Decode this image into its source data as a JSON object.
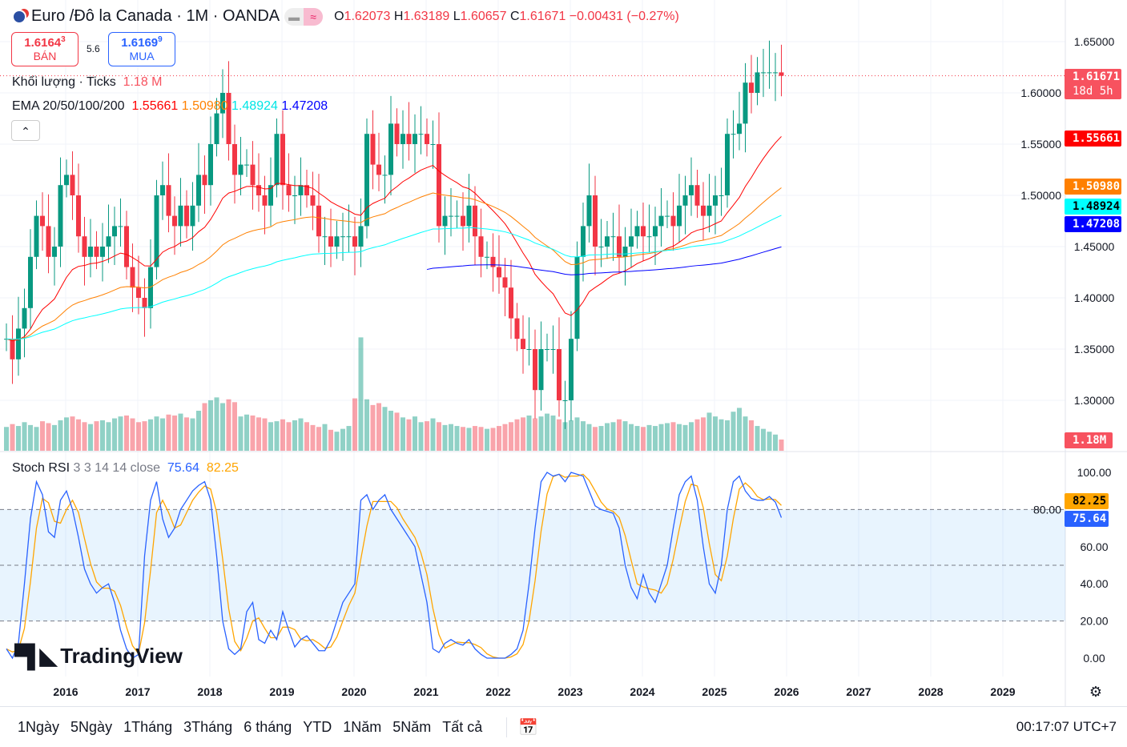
{
  "header": {
    "title": "Euro /Đô la Canada · 1M · OANDA",
    "open_label": "O",
    "open": "1.62073",
    "high_label": "H",
    "high": "1.63189",
    "low_label": "L",
    "low": "1.60657",
    "close_label": "C",
    "close": "1.61671",
    "change": "−0.00431 (−0.27%)"
  },
  "trade": {
    "sell_price": "1.6164",
    "sell_sup": "3",
    "sell_label": "BÁN",
    "spread": "5.6",
    "buy_price": "1.6169",
    "buy_sup": "9",
    "buy_label": "MUA"
  },
  "volume_legend": {
    "label": "Khối lượng · Ticks",
    "value": "1.18 M"
  },
  "ema_legend": {
    "label": "EMA 20/50/100/200",
    "ema20": "1.55661",
    "ema50": "1.50980",
    "ema100": "1.48924",
    "ema200": "1.47208"
  },
  "stoch_legend": {
    "label": "Stoch RSI",
    "params": "3 3 14 14 close",
    "k": "75.64",
    "d": "82.25"
  },
  "price_tags": {
    "last": "1.61671",
    "countdown": "18d 5h",
    "ema20": "1.55661",
    "ema50": "1.50980",
    "ema100": "1.48924",
    "ema200": "1.47208",
    "volume": "1.18M",
    "stoch_d": "82.25",
    "stoch_k": "75.64"
  },
  "colors": {
    "up": "#089981",
    "down": "#f23645",
    "ema20": "#ff0000",
    "ema50": "#ff8000",
    "ema100": "#00ffff",
    "ema200": "#0000ff",
    "k": "#2962ff",
    "d": "#ffa500"
  },
  "bottom": {
    "ranges": [
      "1Ngày",
      "5Ngày",
      "1Tháng",
      "3Tháng",
      "6 tháng",
      "YTD",
      "1Năm",
      "5Năm",
      "Tất cả"
    ],
    "time": "00:17:07 UTC+7"
  },
  "logo": "TradingView",
  "chart_data": {
    "type": "candlestick",
    "start": "2015-03",
    "interval": "1M",
    "x_ticks": [
      "2016",
      "2017",
      "2018",
      "2019",
      "2020",
      "2021",
      "2022",
      "2023",
      "2024",
      "2025",
      "2026",
      "2027",
      "2028",
      "2029"
    ],
    "price_ticks": [
      "1.65000",
      "1.60000",
      "1.55000",
      "1.50000",
      "1.45000",
      "1.40000",
      "1.35000",
      "1.30000"
    ],
    "price_range": [
      1.28,
      1.66
    ],
    "close": [
      1.36,
      1.34,
      1.37,
      1.39,
      1.44,
      1.48,
      1.47,
      1.44,
      1.45,
      1.51,
      1.52,
      1.5,
      1.46,
      1.44,
      1.45,
      1.44,
      1.45,
      1.46,
      1.47,
      1.47,
      1.43,
      1.41,
      1.4,
      1.39,
      1.43,
      1.5,
      1.51,
      1.48,
      1.47,
      1.49,
      1.47,
      1.49,
      1.52,
      1.51,
      1.55,
      1.58,
      1.6,
      1.55,
      1.52,
      1.53,
      1.53,
      1.51,
      1.5,
      1.49,
      1.51,
      1.56,
      1.51,
      1.5,
      1.5,
      1.51,
      1.5,
      1.49,
      1.46,
      1.46,
      1.45,
      1.46,
      1.46,
      1.46,
      1.45,
      1.47,
      1.56,
      1.53,
      1.52,
      1.52,
      1.57,
      1.55,
      1.56,
      1.55,
      1.56,
      1.56,
      1.55,
      1.55,
      1.47,
      1.48,
      1.48,
      1.48,
      1.47,
      1.49,
      1.46,
      1.44,
      1.44,
      1.43,
      1.42,
      1.41,
      1.38,
      1.36,
      1.35,
      1.35,
      1.31,
      1.35,
      1.35,
      1.35,
      1.3,
      1.3,
      1.36,
      1.44,
      1.47,
      1.5,
      1.45,
      1.45,
      1.46,
      1.46,
      1.44,
      1.45,
      1.46,
      1.47,
      1.46,
      1.46,
      1.47,
      1.48,
      1.48,
      1.47,
      1.49,
      1.5,
      1.51,
      1.49,
      1.48,
      1.49,
      1.5,
      1.5,
      1.56,
      1.56,
      1.57,
      1.61,
      1.6,
      1.62,
      1.62,
      1.62,
      1.62,
      1.61671
    ],
    "volume_millions": [
      2.5,
      2.8,
      2.6,
      3.0,
      2.7,
      2.5,
      3.1,
      2.9,
      2.7,
      3.2,
      3.5,
      3.6,
      3.3,
      3.0,
      2.8,
      3.1,
      3.2,
      3.0,
      3.4,
      3.6,
      3.7,
      3.4,
      3.0,
      3.1,
      3.3,
      3.6,
      3.4,
      3.8,
      3.7,
      3.9,
      3.5,
      3.4,
      4.2,
      5.0,
      5.3,
      5.6,
      5.0,
      5.4,
      5.1,
      3.6,
      3.8,
      3.7,
      3.5,
      3.4,
      3.0,
      3.1,
      3.3,
      3.0,
      3.2,
      3.4,
      3.0,
      2.7,
      2.5,
      2.8,
      2.2,
      2.0,
      2.3,
      2.6,
      5.5,
      11.9,
      5.4,
      4.8,
      5.0,
      4.6,
      4.2,
      4.0,
      3.5,
      3.3,
      3.6,
      3.0,
      3.1,
      3.4,
      3.0,
      2.7,
      2.8,
      2.6,
      2.5,
      2.4,
      2.6,
      2.5,
      2.3,
      2.4,
      2.6,
      2.8,
      3.0,
      3.3,
      3.5,
      3.7,
      3.4,
      3.6,
      3.9,
      3.7,
      3.3,
      3.0,
      3.2,
      3.5,
      3.1,
      2.8,
      2.5,
      2.6,
      2.9,
      3.0,
      3.3,
      3.1,
      2.8,
      2.6,
      2.5,
      2.7,
      2.6,
      2.8,
      2.9,
      3.0,
      2.8,
      2.7,
      3.0,
      3.3,
      3.5,
      4.0,
      3.6,
      3.3,
      3.2,
      4.1,
      4.5,
      3.6,
      3.2,
      2.6,
      2.3,
      2.0,
      1.7,
      1.18
    ],
    "stoch_k": [
      5,
      0,
      8,
      40,
      75,
      95,
      88,
      68,
      65,
      85,
      90,
      80,
      65,
      48,
      40,
      35,
      38,
      40,
      30,
      15,
      5,
      0,
      2,
      55,
      85,
      95,
      75,
      65,
      70,
      80,
      85,
      90,
      93,
      95,
      85,
      55,
      20,
      5,
      2,
      5,
      25,
      30,
      10,
      8,
      15,
      10,
      25,
      15,
      6,
      10,
      12,
      8,
      4,
      4,
      10,
      20,
      30,
      35,
      40,
      85,
      88,
      80,
      85,
      88,
      80,
      75,
      70,
      65,
      60,
      45,
      30,
      5,
      3,
      8,
      10,
      8,
      7,
      10,
      5,
      2,
      0,
      0,
      0,
      0,
      2,
      5,
      15,
      40,
      70,
      95,
      100,
      98,
      99,
      95,
      100,
      99,
      98,
      90,
      82,
      80,
      79,
      78,
      70,
      50,
      38,
      32,
      45,
      35,
      30,
      40,
      50,
      70,
      88,
      95,
      98,
      85,
      60,
      40,
      35,
      50,
      80,
      95,
      98,
      90,
      86,
      85,
      85,
      87,
      84,
      75.64
    ],
    "stoch_ticks": [
      "100.00",
      "80.00",
      "60.00",
      "40.00",
      "20.00",
      "0.00"
    ],
    "stoch_range": [
      0,
      100
    ]
  }
}
